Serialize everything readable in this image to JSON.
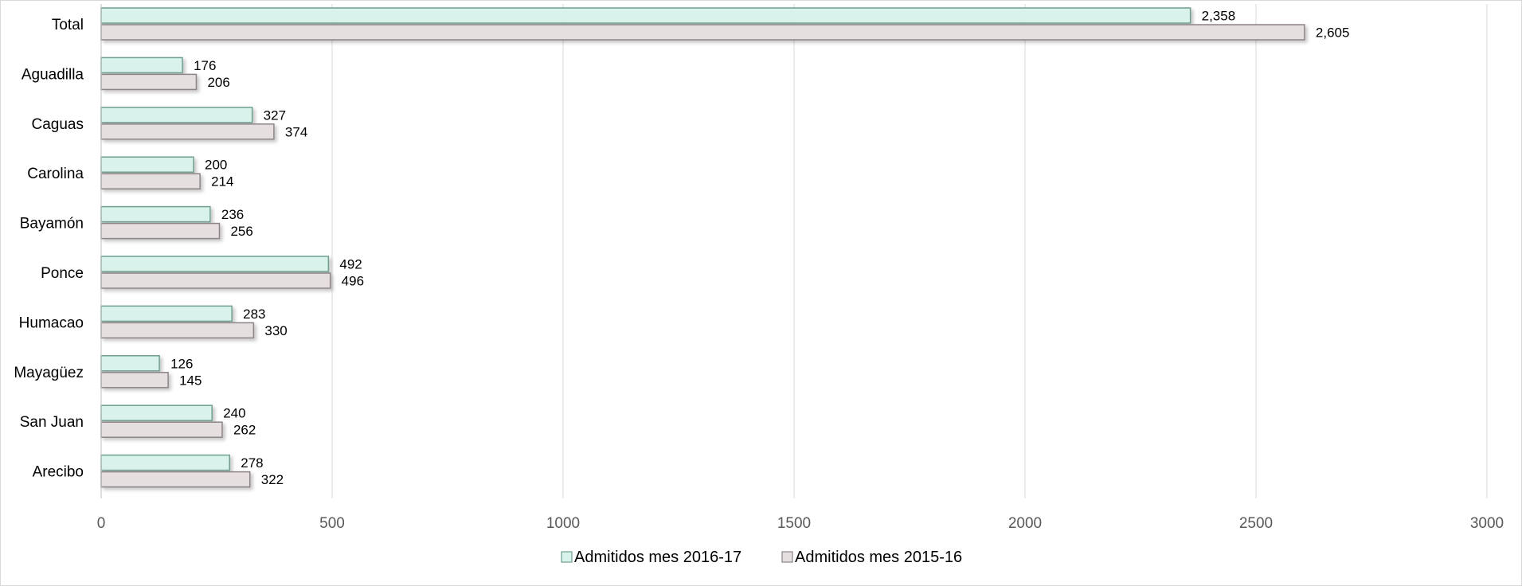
{
  "chart_data": {
    "type": "bar",
    "orientation": "horizontal",
    "categories": [
      "Total",
      "Aguadilla",
      "Caguas",
      "Carolina",
      "Bayamón",
      "Ponce",
      "Humacao",
      "Mayagüez",
      "San Juan",
      "Arecibo"
    ],
    "series": [
      {
        "name": "Admitidos mes 2016-17",
        "color": "#d9f2ec",
        "stroke": "#6f9f90",
        "values": [
          2358,
          176,
          327,
          200,
          236,
          492,
          283,
          126,
          240,
          278
        ],
        "labels": [
          "2,358",
          "176",
          "327",
          "200",
          "236",
          "492",
          "283",
          "126",
          "240",
          "278"
        ]
      },
      {
        "name": "Admitidos mes 2015-16",
        "color": "#e6dfe0",
        "stroke": "#8c8486",
        "values": [
          2605,
          206,
          374,
          214,
          256,
          496,
          330,
          145,
          262,
          322
        ],
        "labels": [
          "2,605",
          "206",
          "374",
          "214",
          "256",
          "496",
          "330",
          "145",
          "262",
          "322"
        ]
      }
    ],
    "xlim": [
      0,
      3000
    ],
    "x_ticks": [
      0,
      500,
      1000,
      1500,
      2000,
      2500,
      3000
    ],
    "x_tick_labels": [
      "0",
      "500",
      "1000",
      "1500",
      "2000",
      "2500",
      "3000"
    ],
    "grid": "vertical",
    "legend": "bottom-center",
    "title": "",
    "xlabel": "",
    "ylabel": ""
  }
}
